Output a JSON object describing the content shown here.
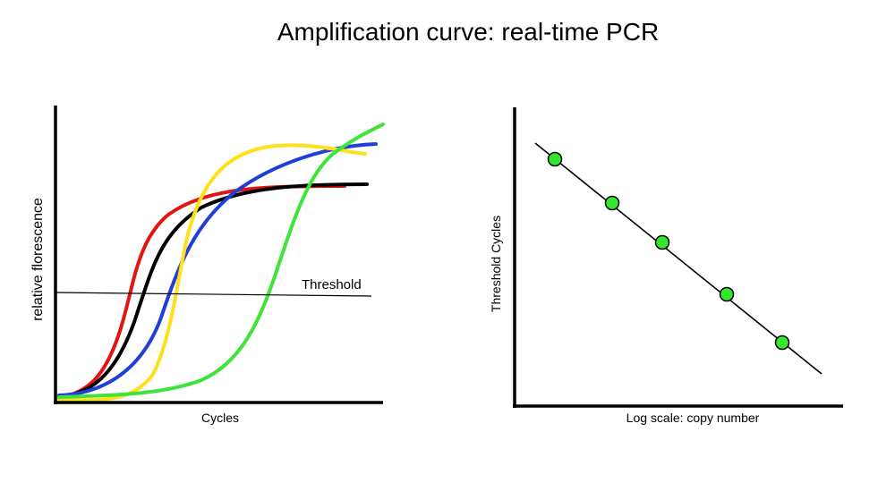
{
  "title": "Amplification curve: real-time PCR",
  "left_panel": {
    "ylabel": "relative florescence",
    "xlabel": "Cycles",
    "threshold_label": "Threshold"
  },
  "right_panel": {
    "ylabel": "Threshold Cycles",
    "xlabel": "Log scale: copy number"
  },
  "colors": {
    "red": "#e3140f",
    "black": "#000000",
    "blue": "#1f3fd6",
    "yellow": "#ffe01a",
    "green": "#3ee43a",
    "point_fill": "#33e62e"
  },
  "chart_data": [
    {
      "type": "line",
      "title": "",
      "xlabel": "Cycles",
      "ylabel": "relative florescence",
      "series": [
        {
          "color": "red",
          "shape": "sigmoid",
          "plateau": "medium",
          "rise_order": 1
        },
        {
          "color": "black",
          "shape": "sigmoid",
          "plateau": "medium",
          "rise_order": 2
        },
        {
          "color": "blue",
          "shape": "sigmoid",
          "plateau": "high",
          "rise_order": 3
        },
        {
          "color": "yellow",
          "shape": "sigmoid",
          "plateau": "high",
          "rise_order": 4
        },
        {
          "color": "green",
          "shape": "sigmoid",
          "plateau": "highest",
          "rise_order": 5
        }
      ],
      "threshold": "horizontal line"
    },
    {
      "type": "scatter",
      "title": "",
      "xlabel": "Log scale: copy number",
      "ylabel": "Threshold Cycles",
      "trend": "decreasing linear",
      "points": 5
    }
  ]
}
